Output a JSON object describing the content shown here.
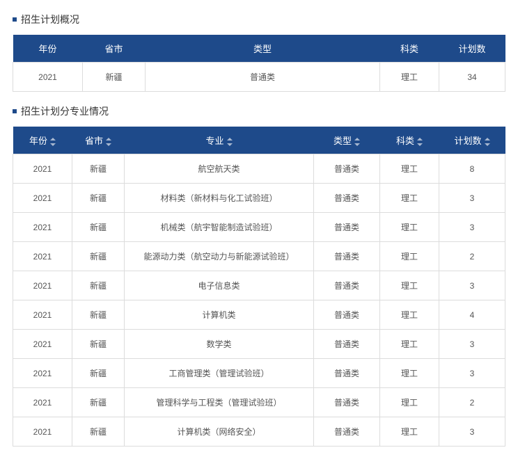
{
  "colors": {
    "header_bg": "#1e4a8a",
    "header_text": "#ffffff",
    "border": "#dcdcdc",
    "bullet": "#1e4a8a",
    "body_text": "#555555",
    "sort_arrow": "#a8b8d0"
  },
  "section1": {
    "title": "招生计划概况",
    "columns": [
      "年份",
      "省市",
      "类型",
      "科类",
      "计划数"
    ],
    "row": {
      "year": "2021",
      "province": "新疆",
      "type": "普通类",
      "category": "理工",
      "count": "34"
    }
  },
  "section2": {
    "title": "招生计划分专业情况",
    "columns": [
      "年份",
      "省市",
      "专业",
      "类型",
      "科类",
      "计划数"
    ],
    "sortable_cols": [
      true,
      true,
      true,
      true,
      true,
      true
    ],
    "rows": [
      {
        "year": "2021",
        "province": "新疆",
        "major": "航空航天类",
        "type": "普通类",
        "category": "理工",
        "count": "8"
      },
      {
        "year": "2021",
        "province": "新疆",
        "major": "材料类（新材料与化工试验班）",
        "type": "普通类",
        "category": "理工",
        "count": "3"
      },
      {
        "year": "2021",
        "province": "新疆",
        "major": "机械类（航宇智能制造试验班）",
        "type": "普通类",
        "category": "理工",
        "count": "3"
      },
      {
        "year": "2021",
        "province": "新疆",
        "major": "能源动力类（航空动力与新能源试验班）",
        "type": "普通类",
        "category": "理工",
        "count": "2"
      },
      {
        "year": "2021",
        "province": "新疆",
        "major": "电子信息类",
        "type": "普通类",
        "category": "理工",
        "count": "3"
      },
      {
        "year": "2021",
        "province": "新疆",
        "major": "计算机类",
        "type": "普通类",
        "category": "理工",
        "count": "4"
      },
      {
        "year": "2021",
        "province": "新疆",
        "major": "数学类",
        "type": "普通类",
        "category": "理工",
        "count": "3"
      },
      {
        "year": "2021",
        "province": "新疆",
        "major": "工商管理类（管理试验班）",
        "type": "普通类",
        "category": "理工",
        "count": "3"
      },
      {
        "year": "2021",
        "province": "新疆",
        "major": "管理科学与工程类（管理试验班）",
        "type": "普通类",
        "category": "理工",
        "count": "2"
      },
      {
        "year": "2021",
        "province": "新疆",
        "major": "计算机类（网络安全）",
        "type": "普通类",
        "category": "理工",
        "count": "3"
      }
    ]
  }
}
